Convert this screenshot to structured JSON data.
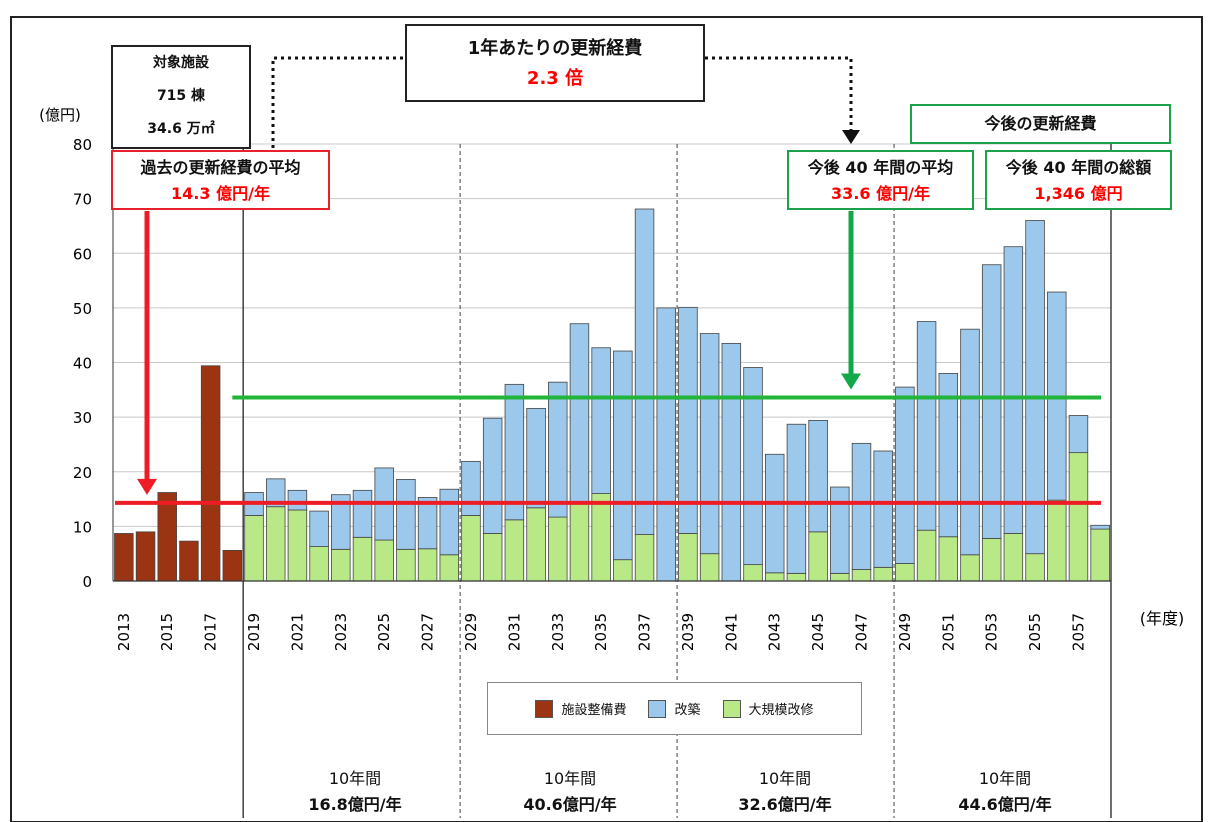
{
  "chart_data": {
    "type": "bar",
    "y_unit": "(億円)",
    "x_unit": "(年度)",
    "ylim": [
      0,
      80
    ],
    "yticks": [
      0,
      10,
      20,
      30,
      40,
      50,
      60,
      70,
      80
    ],
    "years": [
      2013,
      2014,
      2015,
      2016,
      2017,
      2018,
      2019,
      2020,
      2021,
      2022,
      2023,
      2024,
      2025,
      2026,
      2027,
      2028,
      2029,
      2030,
      2031,
      2032,
      2033,
      2034,
      2035,
      2036,
      2037,
      2038,
      2039,
      2040,
      2041,
      2042,
      2043,
      2044,
      2045,
      2046,
      2047,
      2048,
      2049,
      2050,
      2051,
      2052,
      2053,
      2054,
      2055,
      2056,
      2057,
      2058
    ],
    "x_tick_labels": [
      "2013",
      "2015",
      "2017",
      "2019",
      "2021",
      "2023",
      "2025",
      "2027",
      "2029",
      "2031",
      "2033",
      "2035",
      "2037",
      "2039",
      "2041",
      "2043",
      "2045",
      "2047",
      "2049",
      "2051",
      "2053",
      "2055",
      "2057"
    ],
    "series": [
      {
        "name": "施設整備費",
        "color": "#9a3412",
        "stack": 0,
        "values": [
          8.7,
          9.0,
          16.2,
          7.3,
          39.4,
          5.6,
          null,
          null,
          null,
          null,
          null,
          null,
          null,
          null,
          null,
          null,
          null,
          null,
          null,
          null,
          null,
          null,
          null,
          null,
          null,
          null,
          null,
          null,
          null,
          null,
          null,
          null,
          null,
          null,
          null,
          null,
          null,
          null,
          null,
          null,
          null,
          null,
          null,
          null,
          null,
          null
        ]
      },
      {
        "name": "大規模改修",
        "color": "#b9e986",
        "stack": 0,
        "values": [
          null,
          null,
          null,
          null,
          null,
          null,
          12.0,
          13.6,
          13.0,
          6.3,
          5.8,
          8.0,
          7.5,
          5.8,
          5.9,
          4.8,
          12.0,
          8.7,
          11.2,
          13.4,
          11.7,
          14.5,
          16.0,
          3.9,
          8.5,
          0.0,
          8.7,
          5.0,
          0.0,
          3.0,
          1.5,
          1.4,
          9.0,
          1.4,
          2.1,
          2.5,
          3.2,
          9.3,
          8.1,
          4.8,
          7.8,
          8.7,
          5.0,
          14.8,
          23.5,
          9.5
        ]
      },
      {
        "name": "改築",
        "color": "#9cc8ec",
        "stack": 1,
        "values": [
          null,
          null,
          null,
          null,
          null,
          null,
          4.2,
          5.1,
          3.6,
          6.5,
          10.0,
          8.6,
          13.2,
          12.8,
          9.4,
          12.0,
          9.9,
          21.1,
          24.8,
          18.2,
          24.7,
          32.6,
          26.7,
          38.2,
          59.6,
          50.0,
          41.4,
          40.3,
          43.5,
          36.1,
          21.7,
          27.3,
          20.4,
          15.8,
          23.1,
          21.3,
          32.3,
          38.2,
          29.9,
          41.3,
          50.1,
          52.5,
          61.0,
          38.1,
          6.8,
          0.7
        ]
      }
    ],
    "reference_lines": [
      {
        "label": "過去の更新経費の平均",
        "value": 14.3,
        "color": "#ee1c25"
      },
      {
        "label": "今後40年間の平均",
        "value": 33.6,
        "color": "#22b53a"
      }
    ],
    "period_dividers_after": [
      2018,
      2028,
      2038,
      2048
    ]
  },
  "annotations": {
    "target": {
      "line1": "対象施設",
      "line2": "715 棟",
      "line3": "34.6 万㎡"
    },
    "ratio": {
      "title": "1年あたりの更新経費",
      "value": "2.3 倍"
    },
    "past_avg": {
      "title": "過去の更新経費の平均",
      "value": "14.3 億円/年"
    },
    "future_header": "今後の更新経費",
    "future_avg": {
      "title": "今後 40 年間の平均",
      "value": "33.6 億円/年"
    },
    "future_total": {
      "title": "今後 40 年間の総額",
      "value": "1,346 億円"
    }
  },
  "periods": [
    {
      "span": "10年間",
      "amount": "16.8億円/年"
    },
    {
      "span": "10年間",
      "amount": "40.6億円/年"
    },
    {
      "span": "10年間",
      "amount": "32.6億円/年"
    },
    {
      "span": "10年間",
      "amount": "44.6億円/年"
    }
  ],
  "legend": [
    {
      "name": "施設整備費",
      "color": "#9a3412"
    },
    {
      "name": "改築",
      "color": "#9cc8ec"
    },
    {
      "name": "大規模改修",
      "color": "#b9e986"
    }
  ],
  "colors": {
    "red_accent": "#ee1c25",
    "green_accent": "#22b53a",
    "frame": "#222222"
  }
}
